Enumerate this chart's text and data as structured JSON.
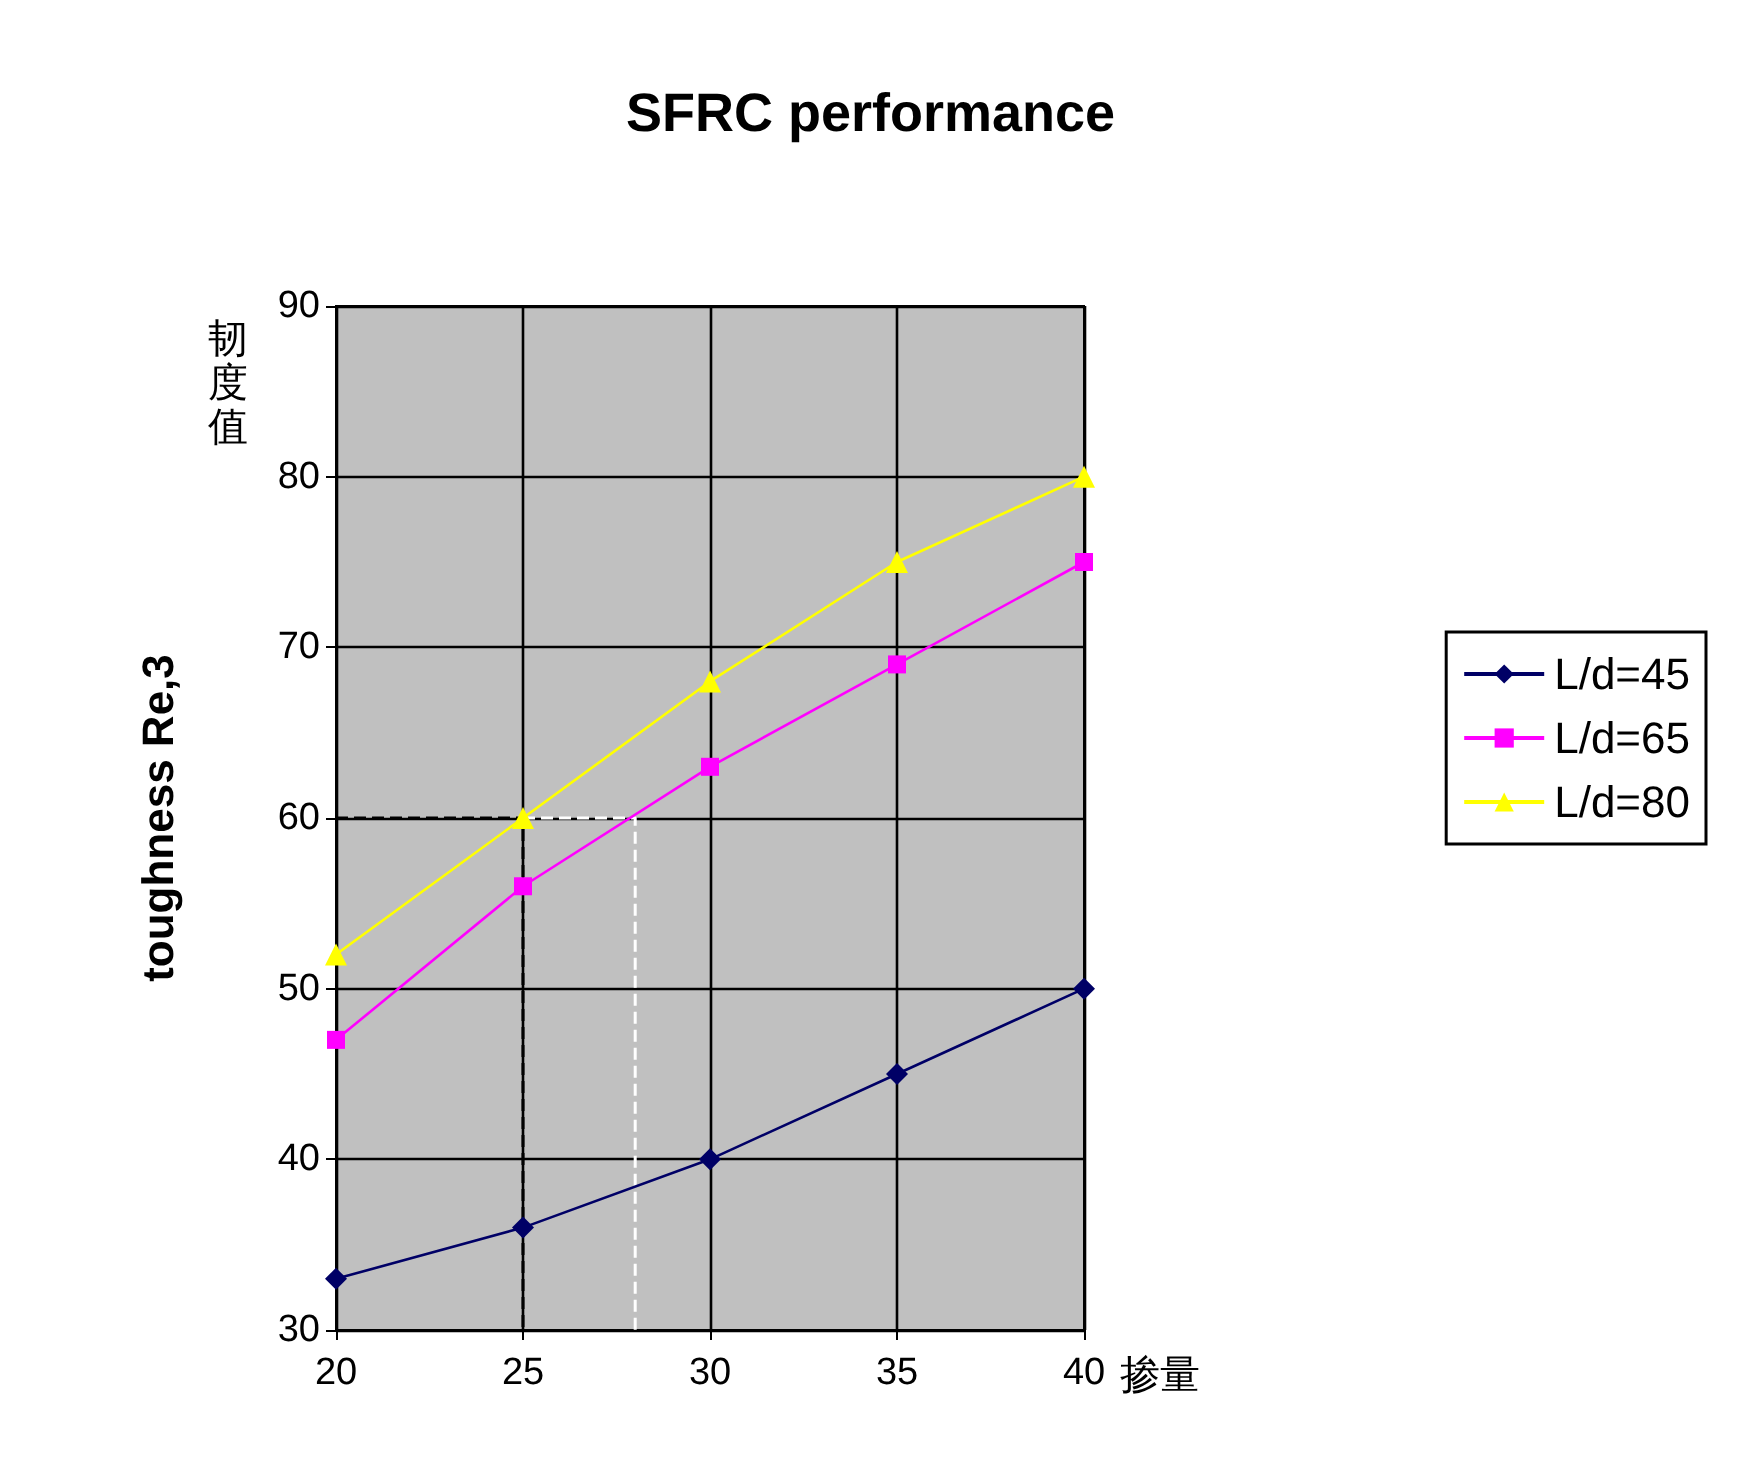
{
  "chart_data": {
    "type": "line",
    "title": "SFRC performance",
    "xlabel": "掺量",
    "ylabel": "toughness Re,3",
    "annotations": [
      "韧度值"
    ],
    "x": [
      20,
      25,
      30,
      35,
      40
    ],
    "xlim": [
      20,
      40
    ],
    "xticks": [
      20,
      25,
      30,
      35,
      40
    ],
    "ylim": [
      30,
      90
    ],
    "yticks": [
      30,
      40,
      50,
      60,
      70,
      80,
      90
    ],
    "grid": true,
    "legend": "right",
    "series": [
      {
        "name": "L/d=45",
        "color": "#000066",
        "marker": "diamond",
        "values": [
          33,
          36,
          40,
          45,
          50
        ]
      },
      {
        "name": "L/d=65",
        "color": "#ff00ff",
        "marker": "square",
        "values": [
          47,
          56,
          63,
          69,
          75
        ]
      },
      {
        "name": "L/d=80",
        "color": "#ffff00",
        "marker": "triangle",
        "values": [
          52,
          60,
          68,
          75,
          80
        ]
      },
      {
        "color": "#000000",
        "marker": "none",
        "line_style": "dashed",
        "x": [
          20,
          25,
          25
        ],
        "values": [
          60,
          60,
          30
        ]
      },
      {
        "color": "#ffffff",
        "marker": "none",
        "line_style": "dashed",
        "x": [
          25,
          28,
          28
        ],
        "values": [
          60,
          60,
          30
        ]
      }
    ]
  }
}
